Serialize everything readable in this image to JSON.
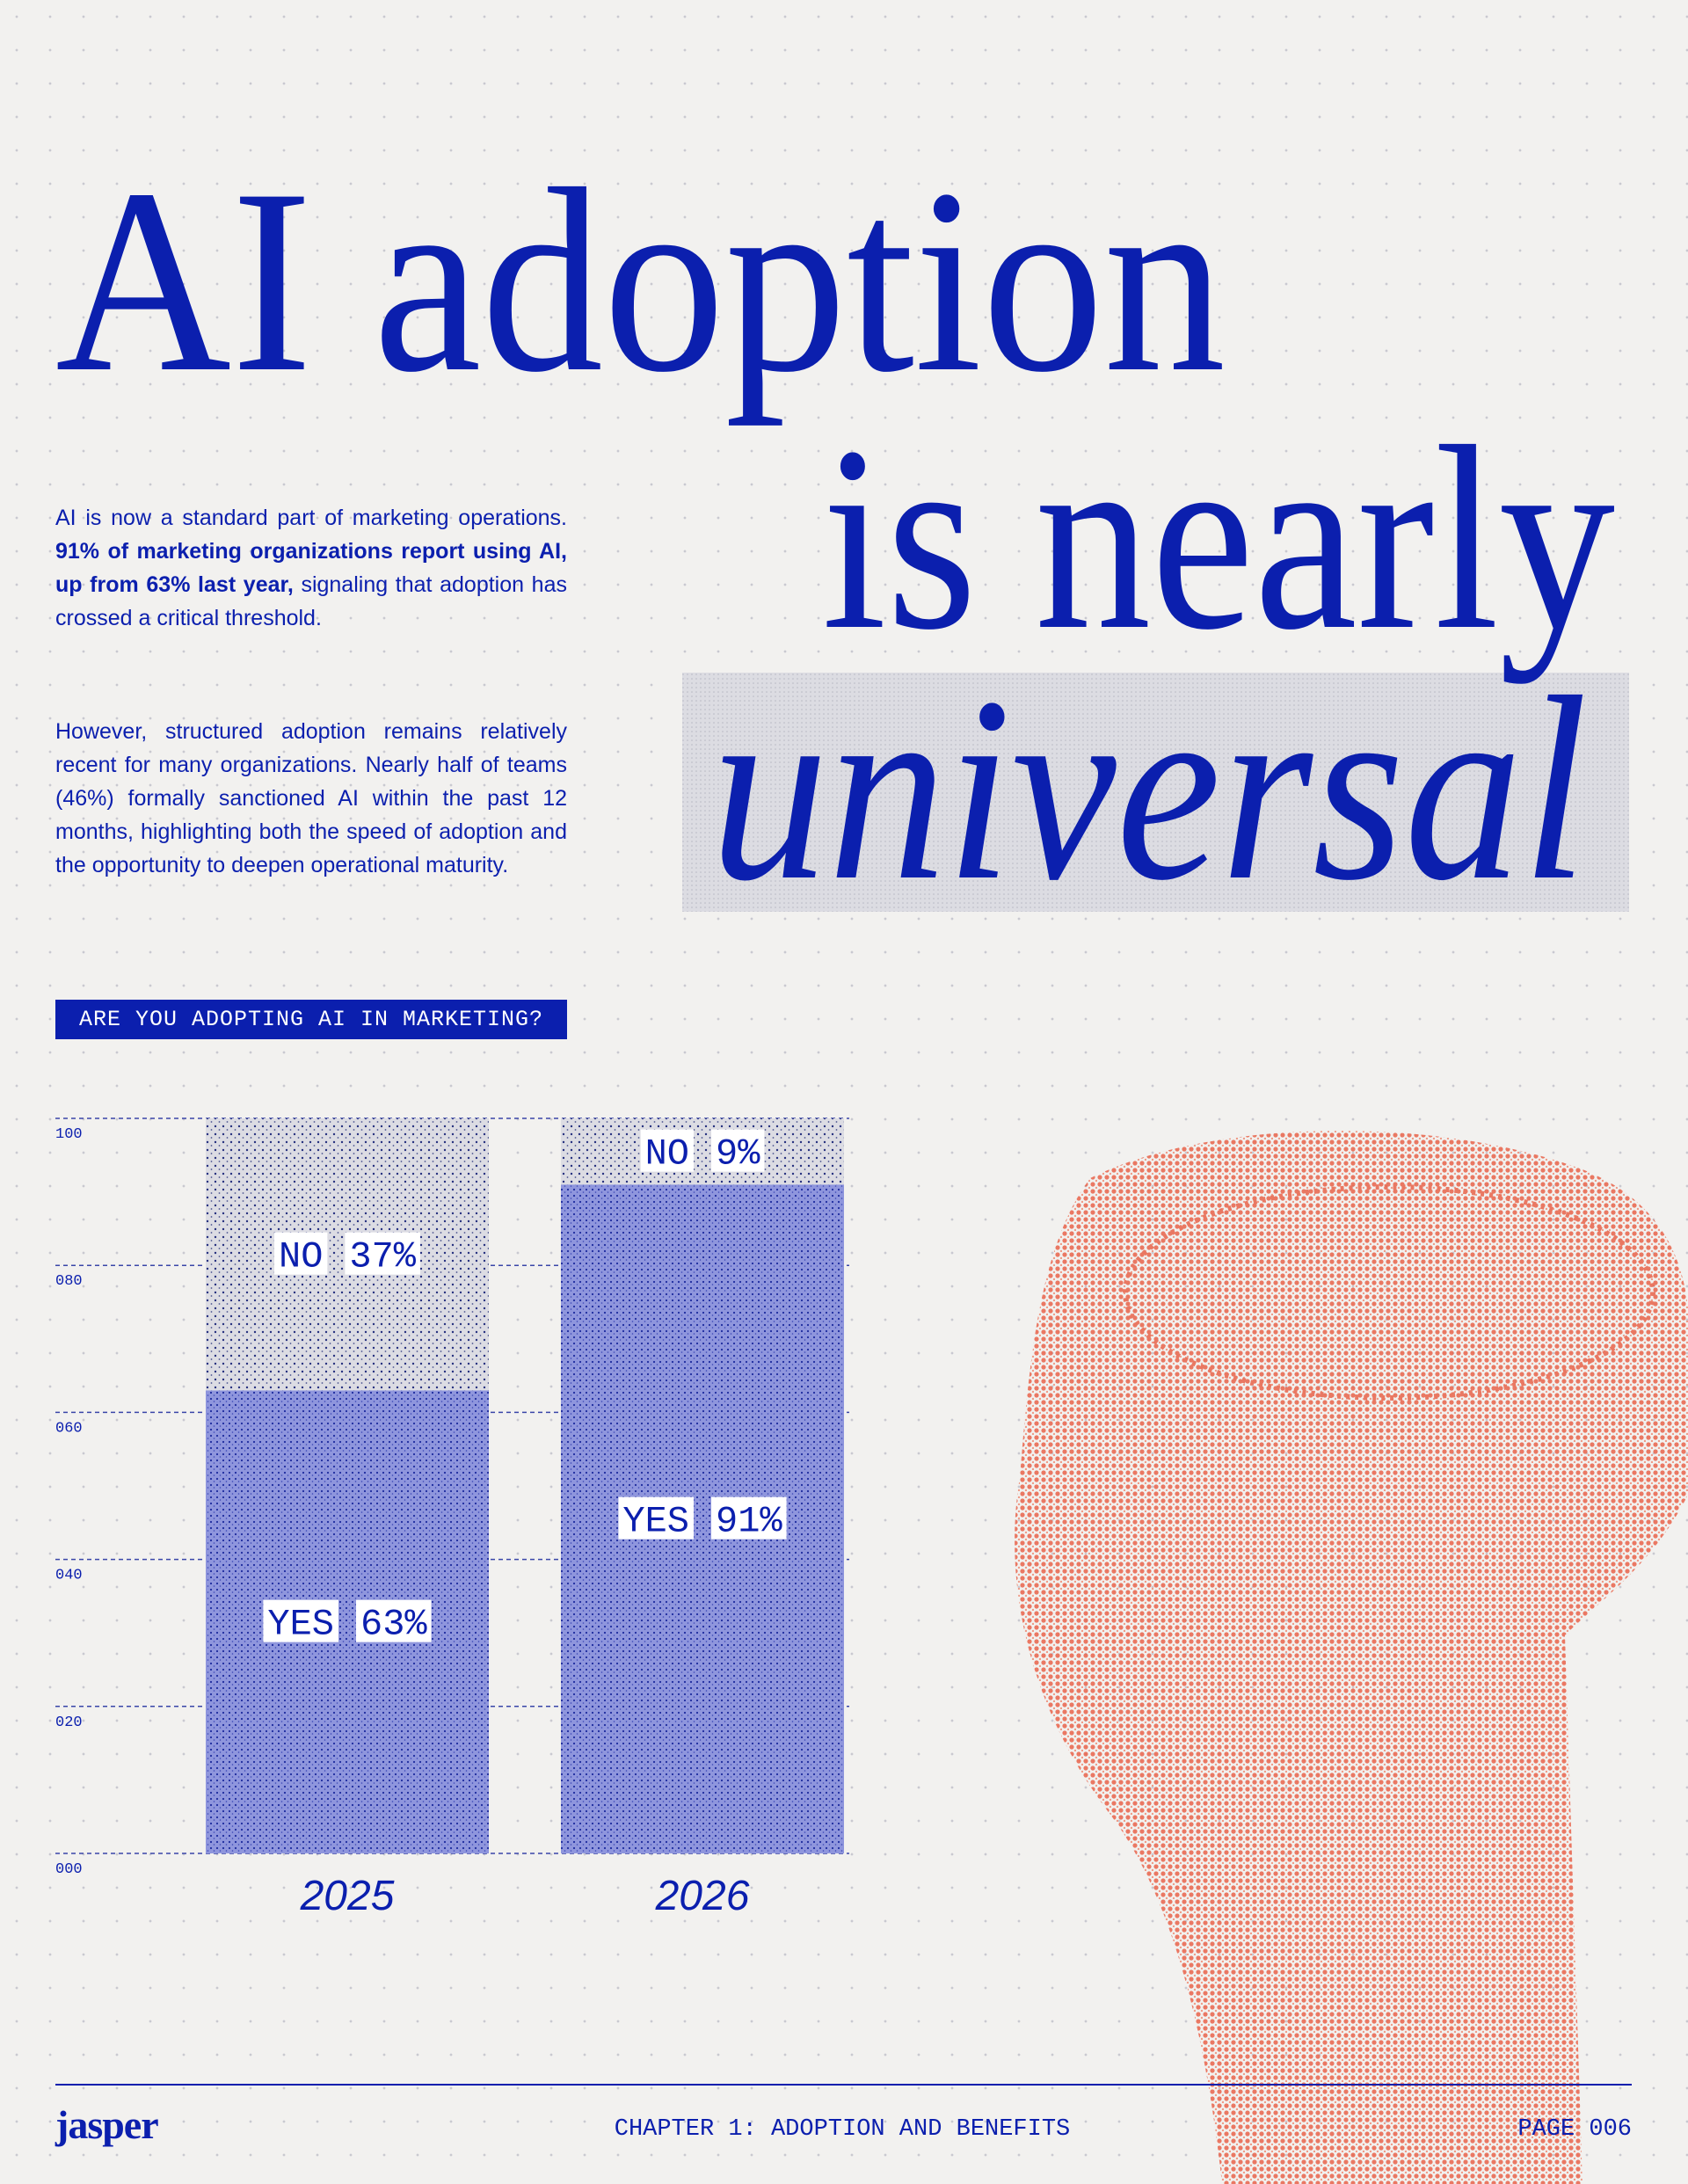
{
  "headline": [
    "AI adoption",
    "is nearly",
    "universal"
  ],
  "paragraphs": [
    [
      "AI is now a standard part of marketing operations. ",
      "91% of marketing organizations report using AI, up from 63% last year,",
      " signaling that adoption has crossed a critical threshold."
    ],
    [
      "However, structured adoption remains relatively recent for many organizations. Nearly half of teams (46%) formally sanctioned AI within the past 12 months, highlighting both the speed of adoption and the opportunity to deepen operational maturity."
    ]
  ],
  "chart_label": "ARE YOU ADOPTING AI IN MARKETING?",
  "chart_data": {
    "type": "stacked_bar",
    "categories": [
      "2025",
      "2026"
    ],
    "series": [
      {
        "name": "YES",
        "color": "#8f96dd",
        "values": [
          63,
          91
        ],
        "value_labels": [
          "63%",
          "91%"
        ]
      },
      {
        "name": "NO",
        "color": "#dcdce3",
        "values": [
          37,
          9
        ],
        "value_labels": [
          "37%",
          "9%"
        ]
      }
    ],
    "ylim": [
      0,
      100
    ],
    "yticks": [
      {
        "value": 0,
        "label": "000"
      },
      {
        "value": 20,
        "label": "020"
      },
      {
        "value": 40,
        "label": "040"
      },
      {
        "value": 60,
        "label": "060"
      },
      {
        "value": 80,
        "label": "080"
      },
      {
        "value": 100,
        "label": "100"
      }
    ],
    "grid": true
  },
  "footer": {
    "logo": "jasper",
    "chapter": "CHAPTER 1: ADOPTION AND BENEFITS",
    "page": "PAGE 006"
  }
}
